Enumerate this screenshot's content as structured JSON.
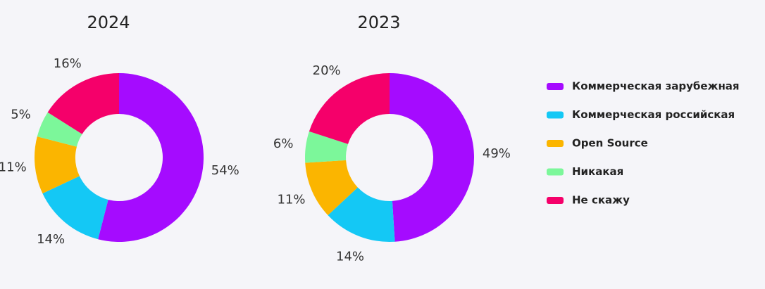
{
  "chart_data": [
    {
      "type": "donut",
      "title": "2024",
      "categories": [
        "Коммерческая зарубежная",
        "Коммерческая российская",
        "Open Source",
        "Никакая",
        "Не скажу"
      ],
      "values": [
        54,
        14,
        11,
        5,
        16
      ],
      "value_labels": [
        "54%",
        "14%",
        "11%",
        "5%",
        "16%"
      ],
      "colors": [
        "#a50bff",
        "#14c8f5",
        "#fbb500",
        "#7cf79a",
        "#f5006a"
      ]
    },
    {
      "type": "donut",
      "title": "2023",
      "values": [
        49,
        14,
        11,
        6,
        20
      ],
      "value_labels": [
        "49%",
        "14%",
        "11%",
        "6%",
        "20%"
      ],
      "colors": [
        "#a50bff",
        "#14c8f5",
        "#fbb500",
        "#7cf79a",
        "#f5006a"
      ]
    }
  ]
}
